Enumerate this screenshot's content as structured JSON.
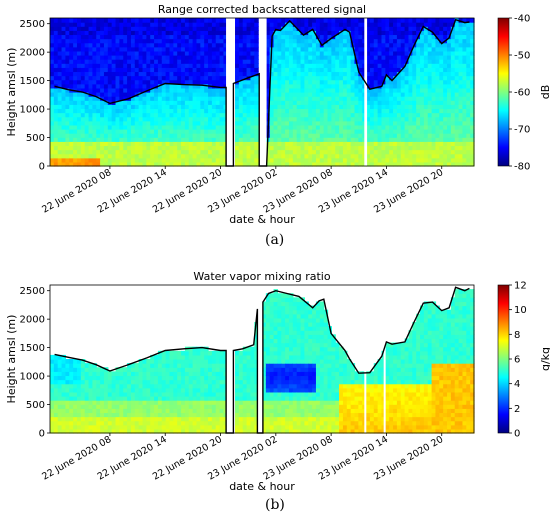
{
  "chart_data": [
    {
      "type": "heatmap",
      "title": "Range corrected backscattered signal",
      "xlabel": "date & hour",
      "ylabel": "Height amsl (m)",
      "x_tick_labels": [
        "22 June 2020 08",
        "22 June 2020 14",
        "22 June 2020 20",
        "23 June 2020 02",
        "23 June 2020 08",
        "23 June 2020 14",
        "23 June 2020 20"
      ],
      "x_ticks_hours": [
        8,
        14,
        20,
        26,
        32,
        38,
        44
      ],
      "xlim_hours": [
        1.5,
        47.5
      ],
      "yticks": [
        0,
        500,
        1000,
        1500,
        2000,
        2500
      ],
      "ylim": [
        0,
        2600
      ],
      "colorbar": {
        "label": "dB",
        "range": [
          -80,
          -40
        ],
        "ticks": [
          -80,
          -70,
          -60,
          -50,
          -40
        ],
        "colormap": "jet"
      },
      "boundary_line": {
        "name": "boundary layer height",
        "hours": [
          2,
          3.5,
          5,
          6.5,
          8,
          10,
          12,
          14,
          16,
          18,
          20,
          20.6,
          20.6,
          21.4,
          21.4,
          23,
          24.2,
          24.2,
          25,
          25.6,
          26,
          26.5,
          27.5,
          29,
          30,
          31,
          32,
          33.5,
          34,
          35,
          36.2,
          37.5,
          38,
          38.6,
          40,
          41,
          42,
          43,
          44,
          44.8,
          45.5,
          46.5,
          47
        ],
        "heights": [
          1400,
          1340,
          1300,
          1220,
          1100,
          1180,
          1320,
          1450,
          1430,
          1420,
          1380,
          1380,
          0,
          0,
          1450,
          1550,
          1620,
          0,
          0,
          2280,
          2400,
          2380,
          2550,
          2300,
          2400,
          2120,
          2240,
          2400,
          2350,
          1650,
          1350,
          1400,
          1600,
          1500,
          1750,
          2120,
          2450,
          2350,
          2150,
          2250,
          2570,
          2520,
          2530
        ]
      },
      "data_gaps_hours": [
        [
          20.6,
          21.4
        ],
        [
          24.2,
          25.0
        ],
        [
          35.6,
          35.9
        ]
      ]
    },
    {
      "type": "heatmap",
      "title": "Water vapor mixing ratio",
      "xlabel": "date & hour",
      "ylabel": "Height amsl (m)",
      "x_tick_labels": [
        "22 June 2020 08",
        "22 June 2020 14",
        "22 June 2020 20",
        "23 June 2020 02",
        "23 June 2020 08",
        "23 June 2020 14",
        "23 June 2020 20"
      ],
      "x_ticks_hours": [
        8,
        14,
        20,
        26,
        32,
        38,
        44
      ],
      "xlim_hours": [
        1.5,
        47.5
      ],
      "yticks": [
        0,
        500,
        1000,
        1500,
        2000,
        2500
      ],
      "ylim": [
        0,
        2600
      ],
      "colorbar": {
        "label": "g/kg",
        "range": [
          0,
          12
        ],
        "ticks": [
          0,
          2,
          4,
          6,
          8,
          10,
          12
        ],
        "colormap": "jet"
      },
      "boundary_line": {
        "name": "boundary layer height",
        "hours": [
          2,
          3.5,
          5,
          6.5,
          8,
          10,
          12,
          14,
          16,
          18,
          20,
          20.6,
          20.6,
          21.4,
          21.4,
          22.4,
          23.6,
          24,
          24,
          24.6,
          24.6,
          25.2,
          26,
          27,
          28.5,
          30,
          30.7,
          31.2,
          32,
          33.5,
          34,
          35,
          36.2,
          37.5,
          38,
          38.6,
          40,
          41,
          42,
          43,
          44,
          44.8,
          45.5,
          46.5,
          47
        ],
        "heights": [
          1380,
          1330,
          1280,
          1200,
          1090,
          1200,
          1320,
          1450,
          1480,
          1500,
          1450,
          1450,
          0,
          0,
          1450,
          1480,
          1550,
          2180,
          0,
          0,
          2300,
          2450,
          2500,
          2460,
          2400,
          2200,
          2320,
          2350,
          1750,
          1450,
          1300,
          1050,
          1060,
          1350,
          1600,
          1560,
          1600,
          1950,
          2280,
          2300,
          2150,
          2200,
          2560,
          2500,
          2540
        ]
      },
      "data_gaps_hours": [
        [
          20.6,
          21.4
        ],
        [
          24.0,
          24.6
        ],
        [
          35.6,
          35.8
        ],
        [
          37.7,
          37.9
        ]
      ]
    }
  ],
  "panel_labels": [
    "(a)",
    "(b)"
  ]
}
